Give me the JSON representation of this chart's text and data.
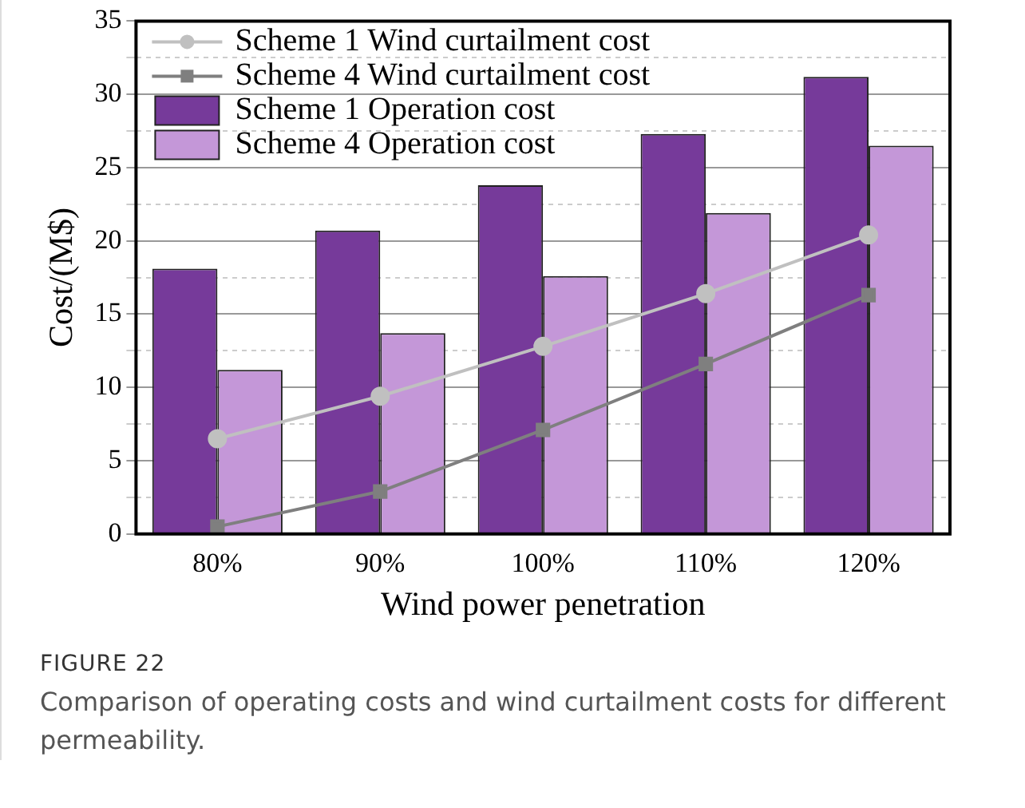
{
  "chart_data": {
    "type": "bar",
    "xlabel": "Wind power penetration",
    "ylabel": "Cost/(M$)",
    "categories": [
      "80%",
      "90%",
      "100%",
      "110%",
      "120%"
    ],
    "series": [
      {
        "name": "Scheme 1 Wind curtailment cost",
        "type": "line",
        "marker": "circle",
        "color": "#c0c0c0",
        "values": [
          6.5,
          9.4,
          12.8,
          16.4,
          20.4
        ]
      },
      {
        "name": "Scheme 4 Wind curtailment cost",
        "type": "line",
        "marker": "square",
        "color": "#7f7f7f",
        "values": [
          0.5,
          2.9,
          7.1,
          11.6,
          16.3
        ]
      },
      {
        "name": "Scheme 1 Operation cost",
        "color": "#763a9a",
        "values": [
          18.1,
          20.7,
          23.8,
          27.3,
          31.2
        ]
      },
      {
        "name": "Scheme 4 Operation cost",
        "color": "#c497d8",
        "values": [
          11.2,
          13.7,
          17.6,
          21.9,
          26.5
        ]
      }
    ],
    "ylim": [
      0,
      35
    ],
    "yticks": [
      0,
      {
        "value": 2.5,
        "label": null
      },
      5,
      {
        "value": 7.5,
        "label": null
      },
      10,
      {
        "value": 12.5,
        "label": null
      },
      15,
      {
        "value": 17.5,
        "label": null
      },
      20,
      {
        "value": 22.5,
        "label": null
      },
      25,
      {
        "value": 27.5,
        "label": null
      },
      30,
      {
        "value": 32.5,
        "label": null
      },
      35
    ],
    "grid": "y",
    "legend": "top left",
    "annotations": [
      "FIGURE 22",
      "Comparison of operating costs and wind curtailment costs for different permeability."
    ]
  }
}
